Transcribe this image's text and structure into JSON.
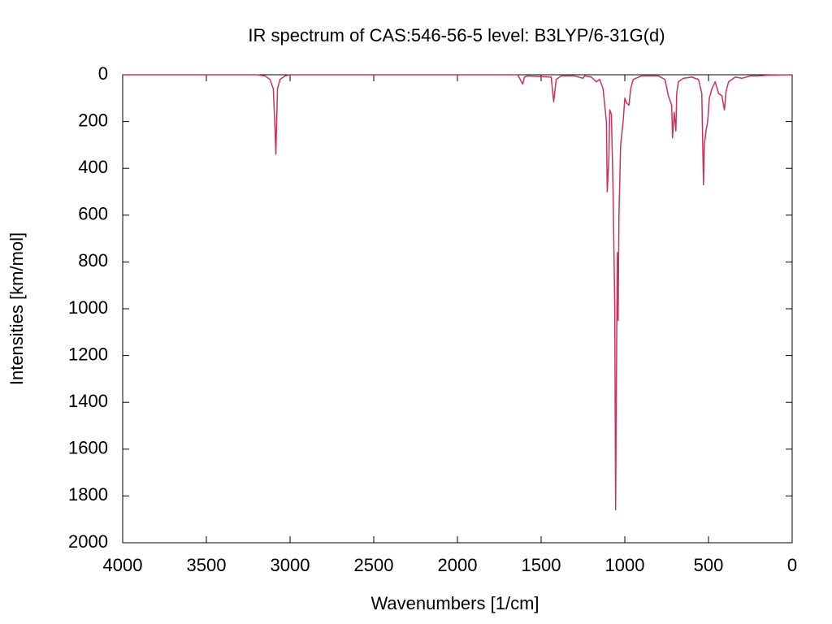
{
  "chart_data": {
    "type": "line",
    "title": "IR spectrum of CAS:546-56-5   level: B3LYP/6-31G(d)",
    "x_label": "Wavenumbers [1/cm]",
    "y_label": "Intensities [km/mol]",
    "xlim": [
      4000,
      0
    ],
    "ylim": [
      0,
      2000
    ],
    "xticks": [
      4000,
      3500,
      3000,
      2500,
      2000,
      1500,
      1000,
      500,
      0
    ],
    "yticks": [
      0,
      200,
      400,
      600,
      800,
      1000,
      1200,
      1400,
      1600,
      1800,
      2000
    ],
    "grid": false,
    "color": "#c8325f",
    "x": [
      4000,
      3200,
      3150,
      3120,
      3100,
      3090,
      3085,
      3080,
      3075,
      3060,
      3030,
      3000,
      1640,
      1610,
      1600,
      1580,
      1440,
      1425,
      1410,
      1380,
      1300,
      1250,
      1240,
      1200,
      1170,
      1150,
      1130,
      1110,
      1105,
      1095,
      1090,
      1080,
      1070,
      1060,
      1055,
      1050,
      1045,
      1040,
      1035,
      1025,
      1010,
      1000,
      990,
      975,
      965,
      950,
      900,
      800,
      760,
      740,
      720,
      715,
      705,
      695,
      690,
      680,
      650,
      600,
      560,
      540,
      530,
      525,
      515,
      505,
      495,
      480,
      460,
      440,
      420,
      405,
      395,
      380,
      360,
      340,
      300,
      250,
      200,
      150,
      0
    ],
    "values": [
      0,
      0,
      5,
      20,
      60,
      230,
      340,
      200,
      60,
      20,
      5,
      0,
      0,
      40,
      10,
      5,
      10,
      115,
      20,
      5,
      5,
      15,
      5,
      10,
      30,
      20,
      60,
      200,
      500,
      350,
      150,
      170,
      500,
      1000,
      1860,
      1300,
      760,
      1050,
      600,
      300,
      200,
      100,
      120,
      130,
      60,
      20,
      5,
      5,
      20,
      90,
      130,
      270,
      160,
      240,
      80,
      30,
      15,
      10,
      20,
      80,
      470,
      300,
      240,
      200,
      100,
      60,
      30,
      80,
      90,
      150,
      70,
      30,
      20,
      10,
      15,
      5,
      5,
      2,
      0
    ]
  }
}
